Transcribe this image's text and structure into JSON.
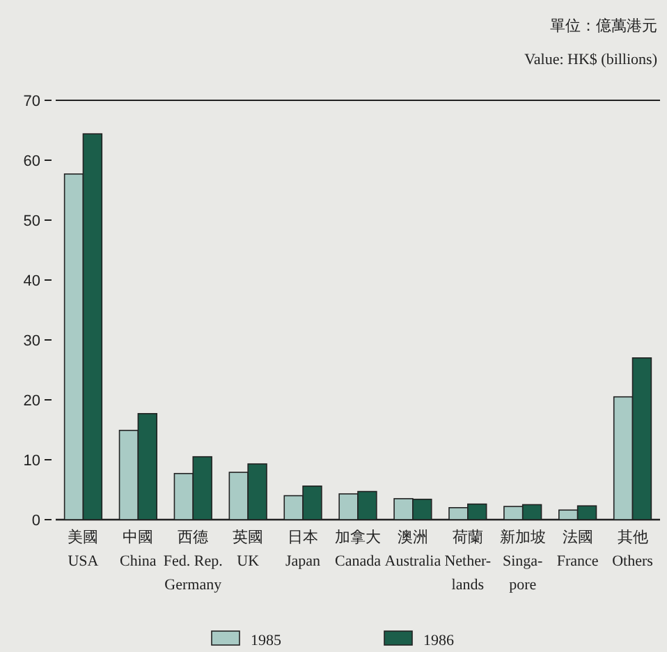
{
  "chart_data": {
    "type": "bar",
    "annotations": [
      "單位：億萬港元",
      "Value: HK$ (billions)"
    ],
    "categories": [
      "美國\nUSA",
      "中國\nChina",
      "西德\nFed. Rep.\nGermany",
      "英國\nUK",
      "日本\nJapan",
      "加拿大\nCanada",
      "澳洲\nAustralia",
      "荷蘭\nNether-\nlands",
      "新加坡\nSinga-\npore",
      "法國\nFrance",
      "其他\nOthers"
    ],
    "series": [
      {
        "name": "1985",
        "color": "#a9cbc5",
        "values": [
          57.7,
          14.9,
          7.7,
          7.9,
          4.0,
          4.3,
          3.5,
          2.0,
          2.2,
          1.6,
          20.5
        ]
      },
      {
        "name": "1986",
        "color": "#1b5e4a",
        "values": [
          64.4,
          17.7,
          10.5,
          9.3,
          5.6,
          4.7,
          3.4,
          2.6,
          2.5,
          2.3,
          27.0
        ]
      }
    ],
    "ylim": [
      0,
      70
    ],
    "yticks": [
      0,
      10,
      20,
      30,
      40,
      50,
      60,
      70
    ],
    "legend": "bottom",
    "grid": false
  }
}
